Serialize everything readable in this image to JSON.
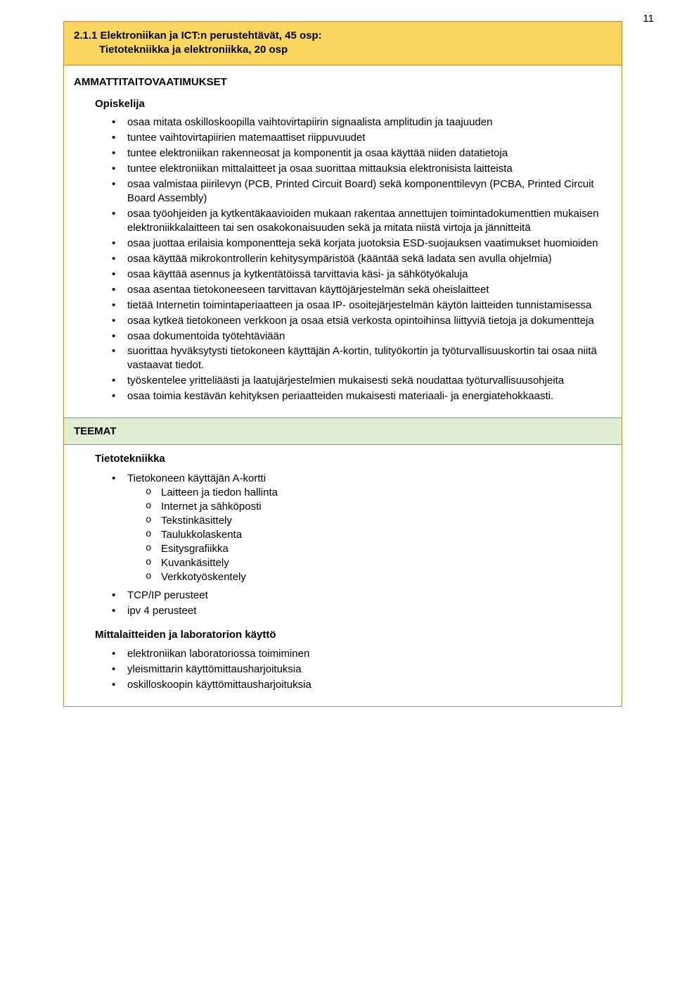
{
  "page_number": "11",
  "header": {
    "line1": "2.1.1 Elektroniikan ja ICT:n perustehtävät, 45 osp:",
    "line2": "Tietotekniikka ja elektroniikka, 20 osp"
  },
  "ammattitaito": {
    "title": "AMMATTITAITOVAATIMUKSET",
    "opiskelija": "Opiskelija",
    "items": [
      "osaa mitata oskilloskoopilla vaihtovirtapiirin signaalista amplitudin ja taajuuden",
      "tuntee vaihtovirtapiirien matemaattiset riippuvuudet",
      "tuntee elektroniikan rakenneosat ja komponentit ja osaa käyttää niiden datatietoja",
      "tuntee elektroniikan mittalaitteet ja osaa suorittaa mittauksia elektronisista laitteista",
      "osaa valmistaa piirilevyn (PCB, Printed Circuit Board) sekä komponenttilevyn (PCBA, Printed Circuit Board Assembly)",
      "osaa työohjeiden ja kytkentäkaavioiden mukaan rakentaa annettujen toimintadokumenttien mukaisen elektroniikkalaitteen tai sen osakokonaisuuden sekä ja mitata niistä virtoja ja jännitteitä",
      "osaa juottaa erilaisia komponentteja sekä korjata juotoksia ESD-suojauksen vaatimukset huomioiden",
      "osaa käyttää mikrokontrollerin kehitysympäristöä (kääntää sekä ladata sen avulla ohjelmia)",
      "osaa käyttää asennus ja kytkentätöissä tarvittavia käsi- ja sähkötyökaluja",
      "osaa asentaa tietokoneeseen tarvittavan käyttöjärjestelmän sekä oheislaitteet",
      "tietää Internetin toimintaperiaatteen ja osaa IP- osoitejärjestelmän käytön laitteiden tunnistamisessa",
      "osaa kytkeä tietokoneen verkkoon ja osaa etsiä verkosta opintoihinsa liittyviä tietoja ja dokumentteja",
      "osaa dokumentoida työtehtäviään",
      "suorittaa hyväksytysti tietokoneen käyttäjän A-kortin, tulityökortin ja työturvallisuuskortin tai osaa niitä vastaavat tiedot.",
      "työskentelee yritteliäästi ja laatujärjestelmien mukaisesti sekä noudattaa työturvallisuusohjeita",
      "osaa toimia kestävän kehityksen periaatteiden mukaisesti materiaali- ja energiatehokkaasti."
    ]
  },
  "teemat": {
    "title": "TEEMAT",
    "section1": {
      "title": "Tietotekniikka",
      "group1": {
        "lead": "Tietokoneen käyttäjän A-kortti",
        "subs": [
          "Laitteen ja tiedon hallinta",
          "Internet ja sähköposti",
          "Tekstinkäsittely",
          "Taulukkolaskenta",
          "Esitysgrafiikka",
          "Kuvankäsittely",
          "Verkkotyöskentely"
        ]
      },
      "items_after": [
        "TCP/IP perusteet",
        "ipv 4 perusteet"
      ]
    },
    "section2": {
      "title": "Mittalaitteiden ja laboratorion käyttö",
      "items": [
        "elektroniikan laboratoriossa toimiminen",
        "yleismittarin käyttömittausharjoituksia",
        "oskilloskoopin käyttömittausharjoituksia"
      ]
    }
  }
}
